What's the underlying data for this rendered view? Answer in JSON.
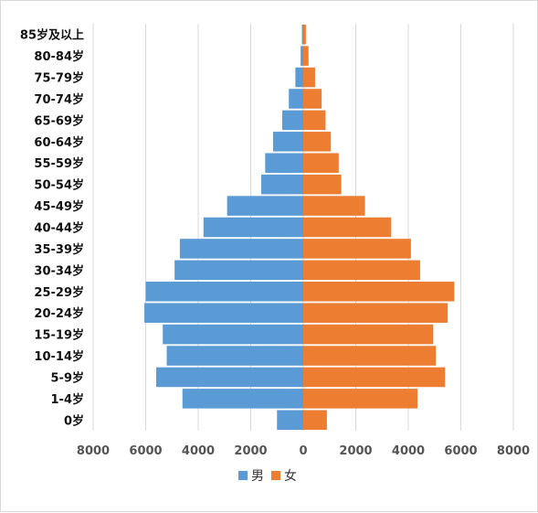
{
  "chart_data": {
    "type": "bar",
    "orientation": "horizontal-population-pyramid",
    "categories": [
      "0岁",
      "1-4岁",
      "5-9岁",
      "10-14岁",
      "15-19岁",
      "20-24岁",
      "25-29岁",
      "30-34岁",
      "35-39岁",
      "40-44岁",
      "45-49岁",
      "50-54岁",
      "55-59岁",
      "60-64岁",
      "65-69岁",
      "70-74岁",
      "75-79岁",
      "80-84岁",
      "85岁及以上"
    ],
    "series": [
      {
        "name": "男",
        "color": "#5B9BD5",
        "values": [
          1000,
          4600,
          5600,
          5200,
          5350,
          6050,
          6000,
          4900,
          4700,
          3800,
          2900,
          1600,
          1450,
          1150,
          800,
          550,
          300,
          100,
          50
        ]
      },
      {
        "name": "女",
        "color": "#ED7D31",
        "values": [
          900,
          4350,
          5400,
          5050,
          4950,
          5500,
          5750,
          4450,
          4100,
          3350,
          2350,
          1450,
          1350,
          1050,
          850,
          700,
          450,
          200,
          100
        ]
      }
    ],
    "x_ticks": [
      "8000",
      "6000",
      "4000",
      "2000",
      "0",
      "2000",
      "4000",
      "6000",
      "8000"
    ],
    "xlim": [
      -8000,
      8000
    ],
    "grid": "vertical",
    "legend": "bottom"
  }
}
